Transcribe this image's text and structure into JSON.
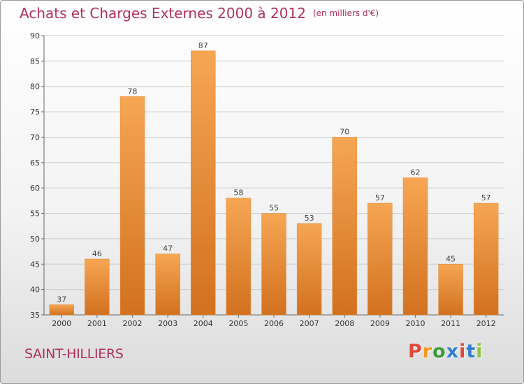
{
  "title": "Achats et Charges Externes 2000 à 2012",
  "title_unit": "(en milliers d'€)",
  "commune": "SAINT-HILLIERS",
  "logo": {
    "letters": [
      "P",
      "r",
      "o",
      "x",
      "i",
      "t",
      "i"
    ],
    "colors": [
      "#e0473a",
      "#f29a1e",
      "#3a9a3a",
      "#2f7fd1",
      "#e0473a",
      "#2f7fd1",
      "#8cc63e"
    ]
  },
  "colors": {
    "bar_top": "#f6a653",
    "bar_bottom": "#d2711f",
    "title": "#b0305a",
    "grid": "#cccccc"
  },
  "chart_data": {
    "type": "bar",
    "title": "Achats et Charges Externes 2000 à 2012",
    "categories": [
      "2000",
      "2001",
      "2002",
      "2003",
      "2004",
      "2005",
      "2006",
      "2007",
      "2008",
      "2009",
      "2010",
      "2011",
      "2012"
    ],
    "values": [
      37,
      46,
      78,
      47,
      87,
      58,
      55,
      53,
      70,
      57,
      62,
      45,
      57
    ],
    "ylim": [
      35,
      90
    ],
    "yticks": [
      35,
      40,
      45,
      50,
      55,
      60,
      65,
      70,
      75,
      80,
      85,
      90
    ],
    "xlabel": "",
    "ylabel": "",
    "grid": true
  }
}
